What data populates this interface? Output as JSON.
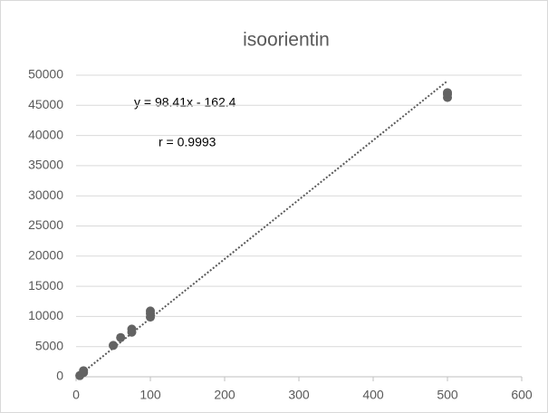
{
  "chart_data": {
    "type": "scatter",
    "title": "isoorientin",
    "x": [
      5,
      10,
      10,
      50,
      60,
      75,
      75,
      100,
      100,
      100,
      500,
      500,
      500
    ],
    "values": [
      200,
      700,
      1000,
      5200,
      6500,
      7400,
      7900,
      9900,
      10500,
      10900,
      46300,
      46800,
      47100
    ],
    "color": "#636363",
    "xlim": [
      0,
      600
    ],
    "xticks": [
      0,
      100,
      200,
      300,
      400,
      500,
      600
    ],
    "ylim": [
      0,
      50000
    ],
    "yticks": [
      0,
      5000,
      10000,
      15000,
      20000,
      25000,
      30000,
      35000,
      40000,
      45000,
      50000
    ],
    "grid": true,
    "trendline": {
      "label": "y = 98.41x - 162.4",
      "slope": 98.41,
      "intercept": -162.4,
      "color": "#595959"
    },
    "r_label": "r = 0.9993"
  }
}
